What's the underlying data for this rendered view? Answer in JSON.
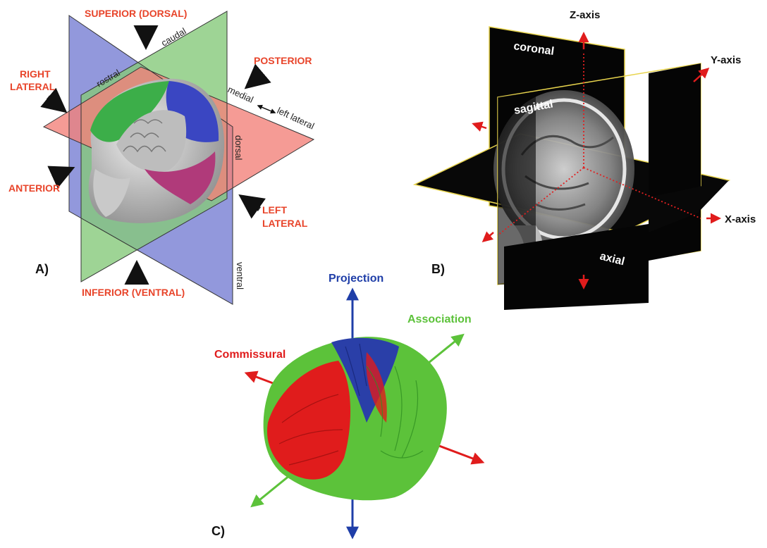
{
  "panel_a": {
    "letter": "A)",
    "superior": "SUPERIOR (DORSAL)",
    "right_lateral_1": "RIGHT",
    "right_lateral_2": "LATERAL",
    "posterior": "POSTERIOR",
    "anterior": "ANTERIOR",
    "left_lateral_1": "LEFT",
    "left_lateral_2": "LATERAL",
    "inferior": "INFERIOR (VENTRAL)",
    "caudal": "caudal",
    "rostral": "rostral",
    "medial": "medial",
    "left_lateral_small": "left lateral",
    "dorsal": "dorsal",
    "ventral": "ventral"
  },
  "panel_b": {
    "letter": "B)",
    "z_axis": "Z-axis",
    "y_axis": "Y-axis",
    "x_axis": "X-axis",
    "coronal": "coronal",
    "sagittal": "sagittal",
    "axial": "axial"
  },
  "panel_c": {
    "letter": "C)",
    "projection": "Projection",
    "association": "Association",
    "commissural": "Commissural"
  },
  "colors": {
    "label_red": "#e8442a",
    "plane_blue": "#7f86d6",
    "plane_green": "#86c97a",
    "plane_red": "#f2827a",
    "fiber_red": "#e01c1c",
    "fiber_green": "#5cc23a",
    "fiber_blue": "#2a3fa8"
  }
}
